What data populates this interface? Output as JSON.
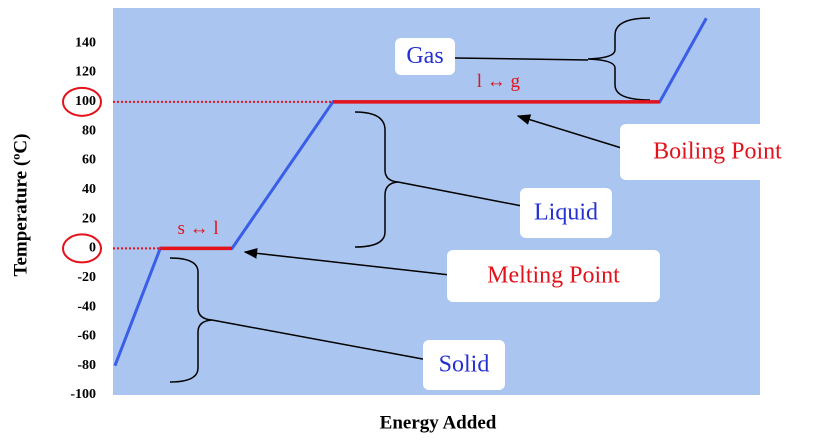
{
  "chart_data": {
    "type": "line",
    "ylabel": "Temperature (ºC)",
    "xlabel": "Energy Added",
    "xlim": [
      0,
      100
    ],
    "ylim": [
      -100,
      164
    ],
    "yticks": [
      -100,
      -80,
      -60,
      -40,
      -20,
      0,
      20,
      40,
      60,
      80,
      100,
      120,
      140
    ],
    "circled_ticks": [
      0,
      100
    ],
    "background": "#a9c5f0",
    "series": [
      {
        "color": "#3a5ee8",
        "x": [
          0.3,
          7.3,
          18.4,
          34,
          84.5,
          91.7
        ],
        "values": [
          -80,
          0,
          0,
          100,
          100,
          157
        ]
      },
      {
        "color": "#e3121b",
        "x": [
          7.3,
          18.4
        ],
        "values": [
          0,
          0
        ],
        "label": "s ↔ l"
      },
      {
        "color": "#e3121b",
        "x": [
          34,
          84.5
        ],
        "values": [
          100,
          100
        ],
        "label": "l ↔ g"
      }
    ],
    "annotations": [
      {
        "text": "Gas",
        "color": "#2430d0"
      },
      {
        "text": "Boiling Point",
        "color": "#e3121b"
      },
      {
        "text": "Liquid",
        "color": "#2430d0"
      },
      {
        "text": "Melting Point",
        "color": "#e3121b"
      },
      {
        "text": "Solid",
        "color": "#2430d0"
      }
    ]
  }
}
